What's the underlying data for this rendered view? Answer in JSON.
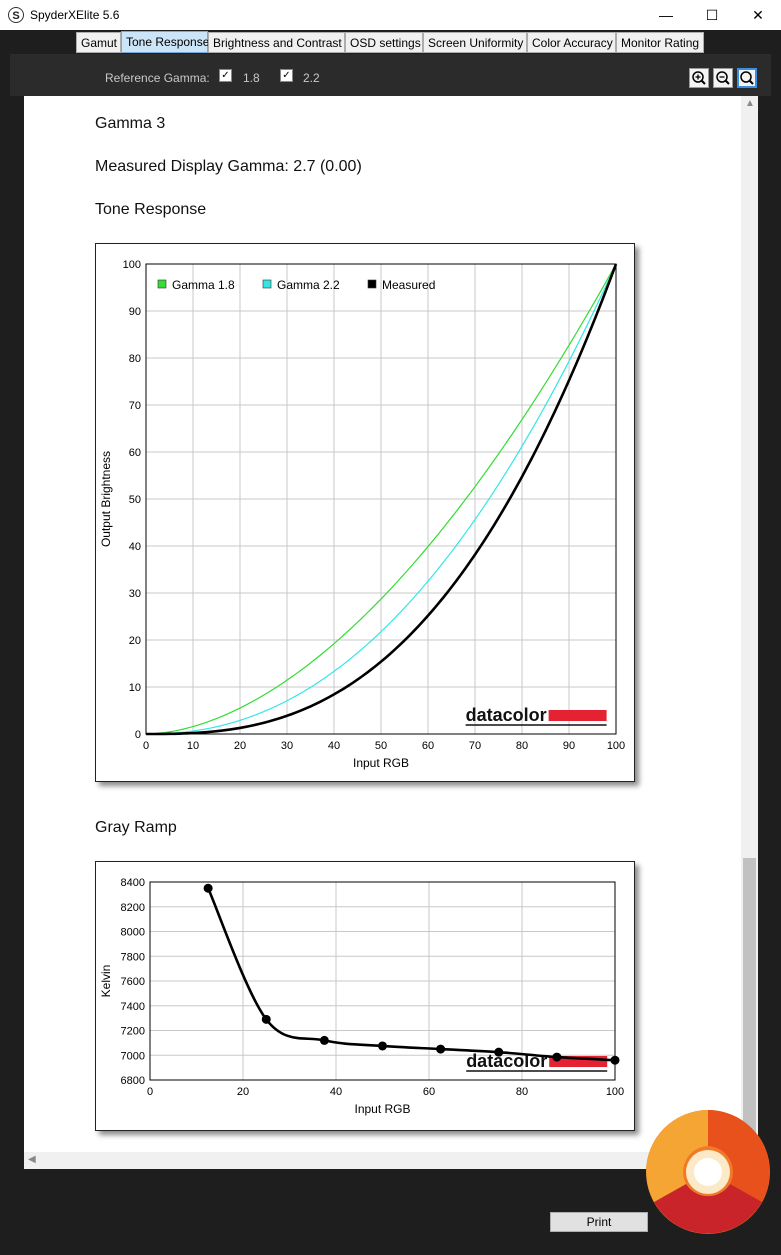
{
  "window": {
    "title": "SpyderXElite 5.6",
    "icon_letter": "S",
    "minimize": "—",
    "maximize": "☐",
    "close": "✕"
  },
  "tabs": [
    {
      "label": "Gamut"
    },
    {
      "label": "Tone Response"
    },
    {
      "label": "Brightness and Contrast"
    },
    {
      "label": "OSD settings"
    },
    {
      "label": "Screen Uniformity"
    },
    {
      "label": "Color Accuracy"
    },
    {
      "label": "Monitor Rating"
    }
  ],
  "active_tab": "Tone Response",
  "toolbar": {
    "reference_gamma_label": "Reference Gamma:",
    "gamma_options": [
      {
        "label": "1.8",
        "checked": true
      },
      {
        "label": "2.2",
        "checked": true
      }
    ],
    "zoom_in": "zoom-in-icon",
    "zoom_out": "zoom-out-icon",
    "zoom_fit": "zoom-fit-icon"
  },
  "report": {
    "heading": "Gamma 3",
    "measured": "Measured Display Gamma: 2.7 (0.00)",
    "tone_response_title": "Tone Response",
    "gray_ramp_title": "Gray Ramp"
  },
  "watermark": "datacolor",
  "print_label": "Print",
  "colors": {
    "gamma18": "#33dd33",
    "gamma22": "#33e6e6",
    "measured": "#000000",
    "datacolor_bar": "#e52232",
    "tab_active": "#cce4f7"
  },
  "chart_data": [
    {
      "type": "line",
      "xlabel": "Input RGB",
      "ylabel": "Output Brightness",
      "xlim": [
        0,
        100
      ],
      "ylim": [
        0,
        100
      ],
      "xticks": [
        0,
        10,
        20,
        30,
        40,
        50,
        60,
        70,
        80,
        90,
        100
      ],
      "yticks": [
        0,
        10,
        20,
        30,
        40,
        50,
        60,
        70,
        80,
        90,
        100
      ],
      "grid": true,
      "legend_position": "top-left",
      "series": [
        {
          "name": "Gamma 1.8",
          "color": "#33dd33",
          "gamma": 1.8,
          "x": [
            0,
            10,
            20,
            30,
            40,
            50,
            60,
            70,
            80,
            90,
            100
          ],
          "y": [
            0,
            1.6,
            5.5,
            11.4,
            19.2,
            28.7,
            39.8,
            52.6,
            66.9,
            82.7,
            100
          ]
        },
        {
          "name": "Gamma 2.2",
          "color": "#33e6e6",
          "gamma": 2.2,
          "x": [
            0,
            10,
            20,
            30,
            40,
            50,
            60,
            70,
            80,
            90,
            100
          ],
          "y": [
            0,
            0.6,
            2.9,
            7.1,
            13.3,
            21.8,
            32.5,
            45.6,
            61.2,
            79.3,
            100
          ]
        },
        {
          "name": "Measured",
          "color": "#000000",
          "gamma": 2.7,
          "x": [
            0,
            10,
            20,
            30,
            40,
            50,
            60,
            70,
            80,
            90,
            100
          ],
          "y": [
            0,
            0.2,
            1.3,
            3.9,
            8.4,
            15.4,
            25.2,
            38.2,
            54.7,
            75.2,
            100
          ]
        }
      ]
    },
    {
      "type": "line",
      "xlabel": "Input RGB",
      "ylabel": "Kelvin",
      "xlim": [
        0,
        100
      ],
      "ylim": [
        6800,
        8400
      ],
      "xticks": [
        0,
        20,
        40,
        60,
        80,
        100
      ],
      "yticks": [
        6800,
        7000,
        7200,
        7400,
        7600,
        7800,
        8000,
        8200,
        8400
      ],
      "grid": true,
      "series": [
        {
          "name": "",
          "color": "#000000",
          "x": [
            12.5,
            25,
            37.5,
            50,
            62.5,
            75,
            87.5,
            100
          ],
          "y": [
            8350,
            7290,
            7120,
            7075,
            7050,
            7025,
            6985,
            6960
          ]
        }
      ]
    }
  ]
}
